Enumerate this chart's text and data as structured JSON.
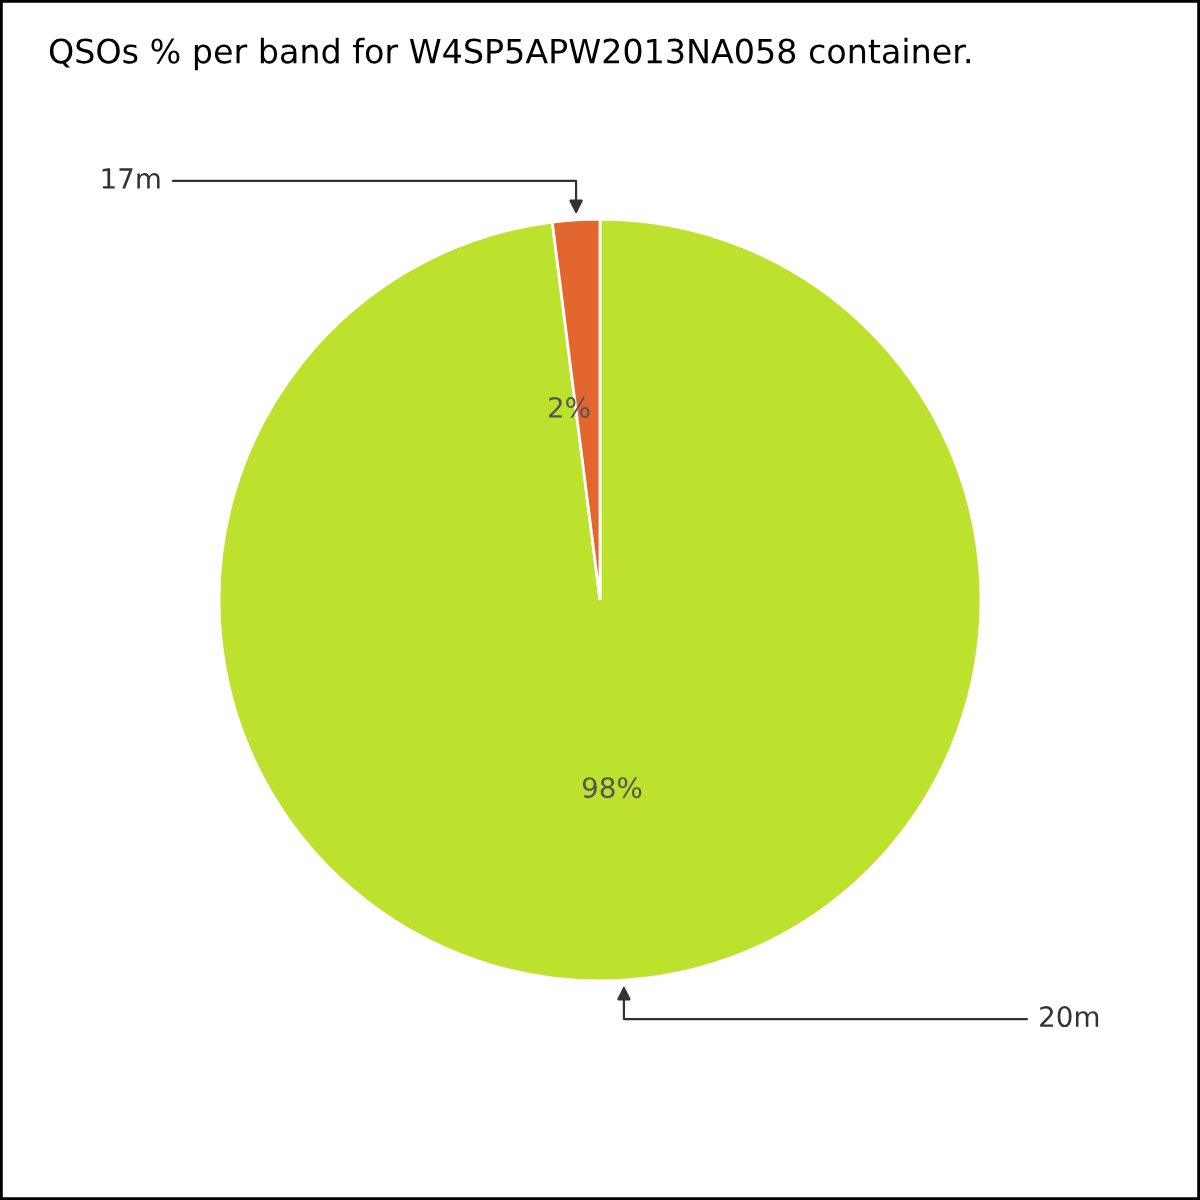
{
  "chart_data": {
    "type": "pie",
    "title": "QSOs % per band for W4SP5APW2013NA058 container.",
    "categories": [
      "20m",
      "17m"
    ],
    "values": [
      98,
      2
    ],
    "colors": [
      "#bde22e",
      "#e2662e"
    ],
    "value_labels": [
      "98%",
      "2%"
    ]
  }
}
